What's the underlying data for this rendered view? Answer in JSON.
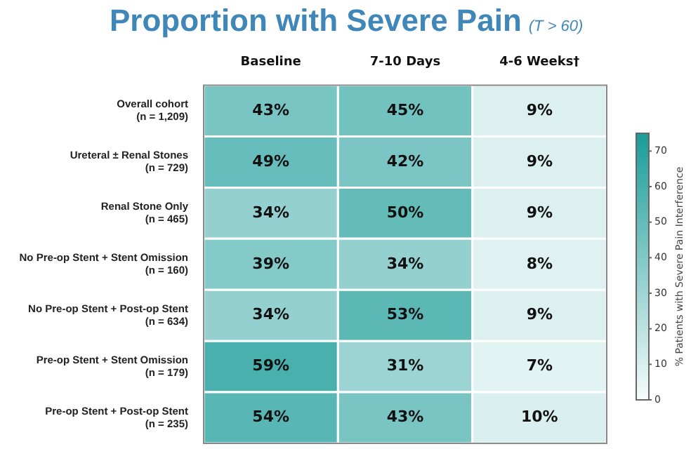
{
  "chart_data": {
    "type": "heatmap",
    "title": "Proportion with Severe Pain",
    "subtitle": "(T > 60)",
    "clabel": "% Patients with Severe Pain Interference",
    "categories": [
      "Baseline",
      "7-10 Days",
      "4-6 Weeks†"
    ],
    "y_categories": [
      "Overall cohort\n(n = 1,209)",
      "Ureteral ± Renal Stones\n(n = 729)",
      "Renal Stone Only\n(n = 465)",
      "No Pre-op Stent + Stent Omission\n(n = 160)",
      "No Pre-op Stent + Post-op Stent\n(n = 634)",
      "Pre-op Stent + Stent Omission\n(n = 179)",
      "Pre-op Stent + Post-op Stent\n(n = 235)"
    ],
    "cells": [
      [
        43,
        45,
        9
      ],
      [
        49,
        42,
        9
      ],
      [
        34,
        50,
        9
      ],
      [
        39,
        34,
        8
      ],
      [
        34,
        53,
        9
      ],
      [
        59,
        31,
        7
      ],
      [
        54,
        43,
        10
      ]
    ],
    "cell_labels": [
      [
        "43%",
        "45%",
        "9%"
      ],
      [
        "49%",
        "42%",
        "9%"
      ],
      [
        "34%",
        "50%",
        "9%"
      ],
      [
        "39%",
        "34%",
        "8%"
      ],
      [
        "34%",
        "53%",
        "9%"
      ],
      [
        "59%",
        "31%",
        "7%"
      ],
      [
        "54%",
        "43%",
        "10%"
      ]
    ],
    "clim": [
      0,
      75
    ],
    "cticks": [
      0,
      10,
      20,
      30,
      40,
      50,
      60,
      70
    ]
  }
}
